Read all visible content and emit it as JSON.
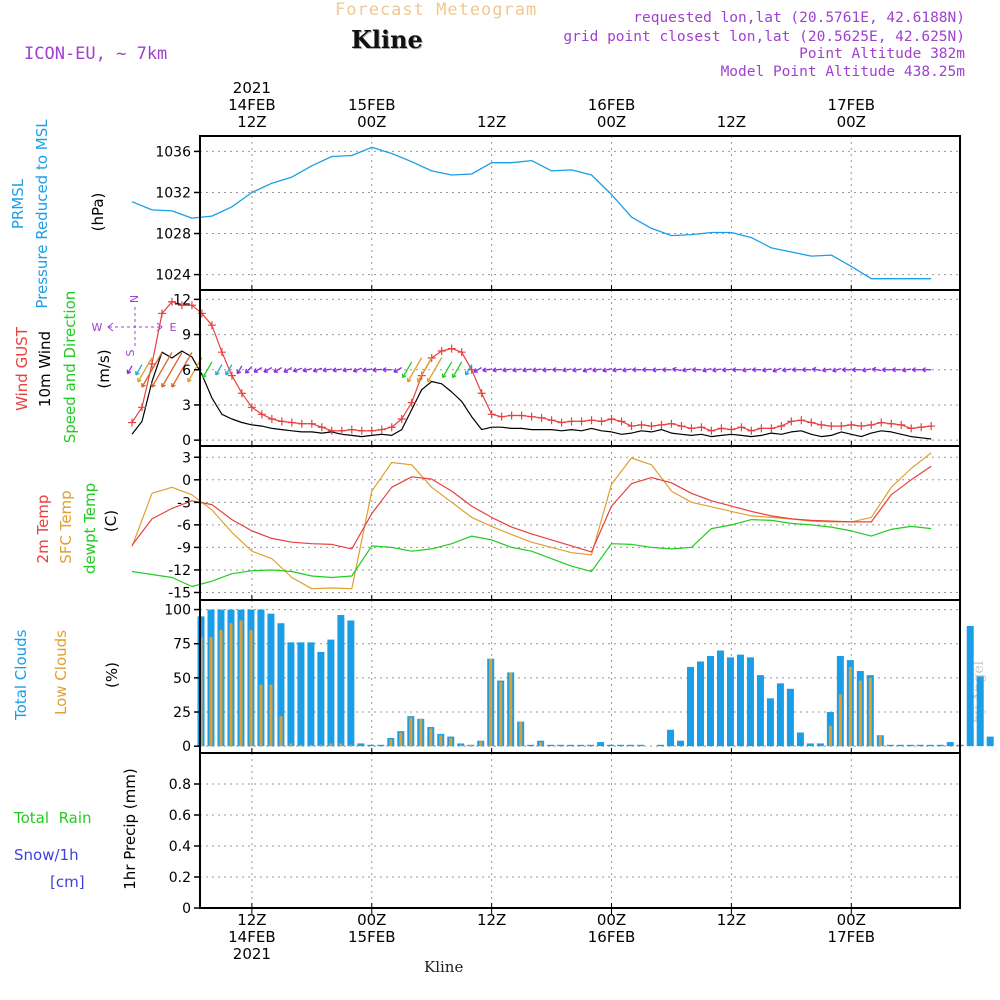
{
  "header": {
    "product": "Forecast Meteogram",
    "model": "ICON-EU, ~ 7km",
    "location": "Kline",
    "requested": "requested lon,lat (20.5761E, 42.6188N)",
    "gridpoint": "grid point closest lon,lat (20.5625E, 42.625N)",
    "point_alt": "Point Altitude 382m",
    "model_alt": "Model Point Altitude 438.25m",
    "credit": "by Angel",
    "bottom_label": "Kline"
  },
  "time_axis": {
    "top": [
      {
        "lines": [
          "2021",
          "14FEB",
          "12Z"
        ],
        "h": 12
      },
      {
        "lines": [
          "15FEB",
          "00Z"
        ],
        "h": 24
      },
      {
        "lines": [
          "12Z"
        ],
        "h": 36
      },
      {
        "lines": [
          "16FEB",
          "00Z"
        ],
        "h": 48
      },
      {
        "lines": [
          "12Z"
        ],
        "h": 60
      },
      {
        "lines": [
          "17FEB",
          "00Z"
        ],
        "h": 72
      }
    ],
    "bottom": [
      {
        "lines": [
          "12Z",
          "14FEB",
          "2021"
        ],
        "h": 12
      },
      {
        "lines": [
          "00Z",
          "15FEB"
        ],
        "h": 24
      },
      {
        "lines": [
          "12Z"
        ],
        "h": 36
      },
      {
        "lines": [
          "00Z",
          "16FEB"
        ],
        "h": 48
      },
      {
        "lines": [
          "12Z"
        ],
        "h": 60
      },
      {
        "lines": [
          "00Z",
          "17FEB"
        ],
        "h": 72
      }
    ]
  },
  "labels": {
    "pressure": [
      "PRMSL",
      "Pressure Reduced to MSL",
      "(hPa)"
    ],
    "wind": [
      "Wind GUST",
      "10m Wind",
      "Speed and Direction",
      "(m/s)"
    ],
    "compass": {
      "n": "N",
      "s": "S",
      "w": "W",
      "e": "E"
    },
    "temp": [
      "2m Temp",
      "SFC Temp",
      "dewpt Temp",
      "(C)"
    ],
    "clouds": [
      "Total Clouds",
      "Low Clouds",
      "(%)"
    ],
    "precip": {
      "total": "Total  Rain",
      "snow": "Snow/1h",
      "snow_unit": "[cm]",
      "axis": "1hr Precip (mm)"
    }
  },
  "colors": {
    "pressure": "#1a9ee8",
    "gust": "#e84040",
    "wind": "#000000",
    "sfc": "#e0a030",
    "t2m": "#e84040",
    "dewpt": "#22cc22",
    "total_clouds": "#1a9ee8",
    "low_clouds": "#e0a030",
    "rain": "#22cc22",
    "snow": "#4040e0",
    "arrows": "#8a2be2"
  },
  "chart_data": [
    {
      "type": "line",
      "title": "PRMSL Pressure Reduced to MSL",
      "ylabel": "(hPa)",
      "ylim": [
        1022.5,
        1037.5
      ],
      "yticks": [
        1024,
        1028,
        1032,
        1036
      ],
      "x": [
        0,
        2,
        4,
        6,
        8,
        10,
        12,
        14,
        16,
        18,
        20,
        22,
        24,
        26,
        28,
        30,
        32,
        34,
        36,
        38,
        40,
        42,
        44,
        46,
        48,
        50,
        52,
        54,
        56,
        58,
        60,
        62,
        64,
        66,
        68,
        70,
        72,
        74,
        76,
        78,
        80
      ],
      "series": [
        {
          "name": "PRMSL",
          "values": [
            1031.1,
            1030.3,
            1030.2,
            1029.5,
            1029.7,
            1030.6,
            1032.0,
            1032.9,
            1033.5,
            1034.6,
            1035.5,
            1035.6,
            1036.4,
            1035.8,
            1035.0,
            1034.1,
            1033.7,
            1033.8,
            1034.9,
            1034.9,
            1035.1,
            1034.1,
            1034.2,
            1033.7,
            1031.8,
            1029.6,
            1028.5,
            1027.8,
            1027.9,
            1028.1,
            1028.1,
            1027.6,
            1026.6,
            1026.2,
            1025.8,
            1025.9,
            1024.8,
            1023.6,
            1023.6,
            1023.6,
            1023.6
          ]
        }
      ]
    },
    {
      "type": "line",
      "title": "Wind GUST / 10m Wind Speed and Direction",
      "ylabel": "(m/s)",
      "ylim": [
        -0.5,
        12.8
      ],
      "yticks": [
        0,
        3,
        6,
        9,
        12
      ],
      "x": [
        0,
        1,
        2,
        3,
        4,
        5,
        6,
        7,
        8,
        9,
        10,
        11,
        12,
        13,
        14,
        15,
        16,
        17,
        18,
        19,
        20,
        21,
        22,
        23,
        24,
        25,
        26,
        27,
        28,
        29,
        30,
        31,
        32,
        33,
        34,
        35,
        36,
        37,
        38,
        39,
        40,
        41,
        42,
        43,
        44,
        45,
        46,
        47,
        48,
        49,
        50,
        51,
        52,
        53,
        54,
        55,
        56,
        57,
        58,
        59,
        60,
        61,
        62,
        63,
        64,
        65,
        66,
        67,
        68,
        69,
        70,
        71,
        72,
        73,
        74,
        75,
        76,
        77,
        78,
        79,
        80
      ],
      "series": [
        {
          "name": "Wind GUST",
          "values": [
            1.5,
            2.8,
            6.5,
            10.8,
            11.8,
            11.5,
            11.5,
            10.8,
            9.8,
            7.5,
            5.5,
            4.0,
            2.8,
            2.2,
            1.8,
            1.6,
            1.5,
            1.4,
            1.4,
            1.1,
            0.8,
            0.8,
            0.9,
            0.8,
            0.8,
            0.9,
            1.1,
            1.8,
            3.2,
            5.5,
            7.0,
            7.6,
            7.8,
            7.5,
            6.0,
            4.0,
            2.2,
            2.0,
            2.1,
            2.1,
            2.0,
            1.9,
            1.7,
            1.5,
            1.6,
            1.6,
            1.7,
            1.6,
            1.8,
            1.6,
            1.2,
            1.3,
            1.2,
            1.3,
            1.4,
            1.2,
            1.0,
            1.1,
            0.8,
            1.0,
            0.9,
            1.1,
            0.8,
            1.0,
            1.0,
            1.2,
            1.6,
            1.7,
            1.5,
            1.3,
            1.2,
            1.2,
            1.3,
            1.2,
            1.3,
            1.5,
            1.4,
            1.3,
            1.0,
            1.1,
            1.2
          ]
        },
        {
          "name": "10m Wind",
          "values": [
            0.5,
            1.6,
            5.0,
            7.5,
            7.0,
            7.6,
            7.1,
            5.6,
            3.6,
            2.2,
            1.8,
            1.5,
            1.3,
            1.2,
            1.0,
            0.9,
            0.8,
            0.7,
            0.7,
            0.6,
            0.7,
            0.5,
            0.4,
            0.3,
            0.4,
            0.5,
            0.4,
            0.9,
            2.6,
            4.3,
            5.0,
            4.8,
            4.1,
            3.3,
            2.0,
            0.9,
            1.1,
            1.1,
            1.0,
            1.0,
            0.9,
            0.9,
            0.9,
            0.8,
            0.9,
            0.8,
            1.0,
            0.8,
            0.7,
            0.5,
            0.6,
            0.8,
            0.7,
            0.9,
            0.6,
            0.5,
            0.4,
            0.5,
            0.3,
            0.4,
            0.5,
            0.4,
            0.3,
            0.4,
            0.6,
            0.5,
            0.7,
            0.8,
            0.5,
            0.3,
            0.4,
            0.7,
            0.5,
            0.3,
            0.6,
            0.8,
            0.7,
            0.5,
            0.3,
            0.2,
            0.1
          ]
        }
      ],
      "wind_dir_from_deg": [
        30,
        30,
        30,
        30,
        30,
        30,
        30,
        30,
        30,
        30,
        30,
        30,
        45,
        60,
        60,
        60,
        60,
        70,
        75,
        70,
        80,
        80,
        80,
        70,
        80,
        85,
        90,
        60,
        30,
        30,
        30,
        30,
        30,
        30,
        30,
        60,
        80,
        80,
        80,
        80,
        80,
        80,
        85,
        90,
        80,
        80,
        70,
        80,
        75,
        80,
        80,
        90,
        90,
        85,
        90,
        100,
        80,
        90,
        75,
        80,
        85,
        90,
        80,
        90,
        80,
        70,
        80,
        90,
        90,
        100,
        80,
        75,
        90,
        90,
        80,
        100,
        90,
        90,
        80,
        90,
        90
      ]
    },
    {
      "type": "line",
      "title": "2m Temp / SFC Temp / dewpt Temp",
      "ylabel": "(C)",
      "ylim": [
        -16,
        4.5
      ],
      "yticks": [
        -15,
        -12,
        -9,
        -6,
        -3,
        0,
        3
      ],
      "x": [
        0,
        2,
        4,
        6,
        8,
        10,
        12,
        14,
        16,
        18,
        20,
        22,
        24,
        26,
        28,
        30,
        32,
        34,
        36,
        38,
        40,
        42,
        44,
        46,
        48,
        50,
        52,
        54,
        56,
        58,
        60,
        62,
        64,
        66,
        68,
        70,
        72,
        74,
        76,
        78,
        80
      ],
      "series": [
        {
          "name": "2m Temp",
          "values": [
            -8.7,
            -5.2,
            -3.8,
            -2.8,
            -3.3,
            -5.3,
            -6.8,
            -7.8,
            -8.3,
            -8.5,
            -8.6,
            -9.2,
            -4.5,
            -1.0,
            0.4,
            0.1,
            -1.5,
            -3.5,
            -5.0,
            -6.3,
            -7.2,
            -8.0,
            -8.8,
            -9.6,
            -3.5,
            -0.5,
            0.3,
            -0.4,
            -1.8,
            -2.8,
            -3.5,
            -4.2,
            -4.8,
            -5.2,
            -5.4,
            -5.5,
            -5.6,
            -5.6,
            -2.0,
            0.0,
            1.8
          ]
        },
        {
          "name": "SFC Temp",
          "values": [
            -8.9,
            -1.8,
            -1.0,
            -2.0,
            -4.0,
            -7.0,
            -9.5,
            -10.5,
            -13.0,
            -14.5,
            -14.4,
            -14.5,
            -1.5,
            2.3,
            2.0,
            -1.0,
            -3.0,
            -5.0,
            -6.2,
            -7.3,
            -8.3,
            -9.0,
            -9.7,
            -10.0,
            -0.6,
            2.9,
            2.0,
            -1.5,
            -3.0,
            -3.6,
            -4.2,
            -4.8,
            -5.0,
            -5.2,
            -5.5,
            -5.6,
            -5.6,
            -5.0,
            -1.0,
            1.5,
            3.6
          ]
        },
        {
          "name": "dewpt Temp",
          "values": [
            -12.2,
            -12.6,
            -13.0,
            -14.2,
            -13.5,
            -12.5,
            -12.1,
            -12.0,
            -12.2,
            -12.8,
            -13.0,
            -12.8,
            -8.8,
            -9.0,
            -9.5,
            -9.2,
            -8.5,
            -7.5,
            -8.0,
            -9.0,
            -9.5,
            -10.5,
            -11.5,
            -12.2,
            -8.5,
            -8.6,
            -9.0,
            -9.2,
            -9.0,
            -6.5,
            -6.0,
            -5.3,
            -5.4,
            -5.8,
            -6.0,
            -6.3,
            -6.8,
            -7.5,
            -6.6,
            -6.2,
            -6.5
          ]
        }
      ]
    },
    {
      "type": "bar",
      "title": "Total Clouds / Low Clouds",
      "ylabel": "(%)",
      "ylim": [
        -5,
        107
      ],
      "yticks": [
        0,
        25,
        50,
        75,
        100
      ],
      "x": [
        0,
        1,
        2,
        3,
        4,
        5,
        6,
        7,
        8,
        9,
        10,
        11,
        12,
        13,
        14,
        15,
        16,
        17,
        18,
        19,
        20,
        21,
        22,
        23,
        24,
        25,
        26,
        27,
        28,
        29,
        30,
        31,
        32,
        33,
        34,
        35,
        36,
        37,
        38,
        39,
        40,
        41,
        42,
        43,
        44,
        45,
        46,
        47,
        48,
        49,
        50,
        51,
        52,
        53,
        54,
        55,
        56,
        57,
        58,
        59,
        60,
        61,
        62,
        63,
        64,
        65,
        66,
        67,
        68,
        69,
        70,
        71,
        72,
        73,
        74,
        75,
        76,
        77,
        78,
        79,
        80
      ],
      "series": [
        {
          "name": "Total Clouds",
          "values": [
            95,
            100,
            100,
            100,
            100,
            100,
            100,
            97,
            90,
            76,
            76,
            76,
            69,
            78,
            96,
            92,
            2,
            1,
            1,
            6,
            11,
            22,
            20,
            14,
            9,
            7,
            2,
            1,
            4,
            64,
            48,
            54,
            18,
            1,
            4,
            1,
            1,
            1,
            1,
            1,
            3,
            1,
            1,
            1,
            1,
            0,
            1,
            12,
            4,
            58,
            62,
            66,
            70,
            65,
            67,
            65,
            52,
            35,
            46,
            42,
            10,
            2,
            2,
            25,
            66,
            63,
            55,
            52,
            8,
            1,
            1,
            1,
            1,
            1,
            1,
            3,
            1,
            88,
            51,
            7,
            0
          ]
        },
        {
          "name": "Low Clouds",
          "values": [
            80,
            80,
            85,
            90,
            92,
            85,
            45,
            45,
            22,
            2,
            1,
            1,
            1,
            2,
            2,
            1,
            0,
            0,
            0,
            5,
            10,
            21,
            20,
            13,
            8,
            6,
            1,
            1,
            4,
            64,
            47,
            54,
            18,
            0,
            3,
            0,
            0,
            0,
            0,
            0,
            0,
            0,
            0,
            0,
            0,
            0,
            0,
            0,
            0,
            0,
            0,
            0,
            0,
            0,
            0,
            0,
            0,
            0,
            0,
            0,
            0,
            0,
            0,
            15,
            38,
            58,
            48,
            50,
            8,
            0,
            0,
            0,
            0,
            0,
            0,
            0,
            0,
            0,
            0,
            0,
            0
          ]
        }
      ]
    },
    {
      "type": "bar",
      "title": "1hr Precip",
      "ylabel": "1hr Precip (mm)",
      "ylim": [
        0,
        1.0
      ],
      "yticks": [
        0,
        0.2,
        0.4,
        0.6,
        0.8
      ],
      "series": [
        {
          "name": "Total Rain",
          "values": []
        },
        {
          "name": "Snow/1h",
          "values": []
        }
      ]
    }
  ]
}
